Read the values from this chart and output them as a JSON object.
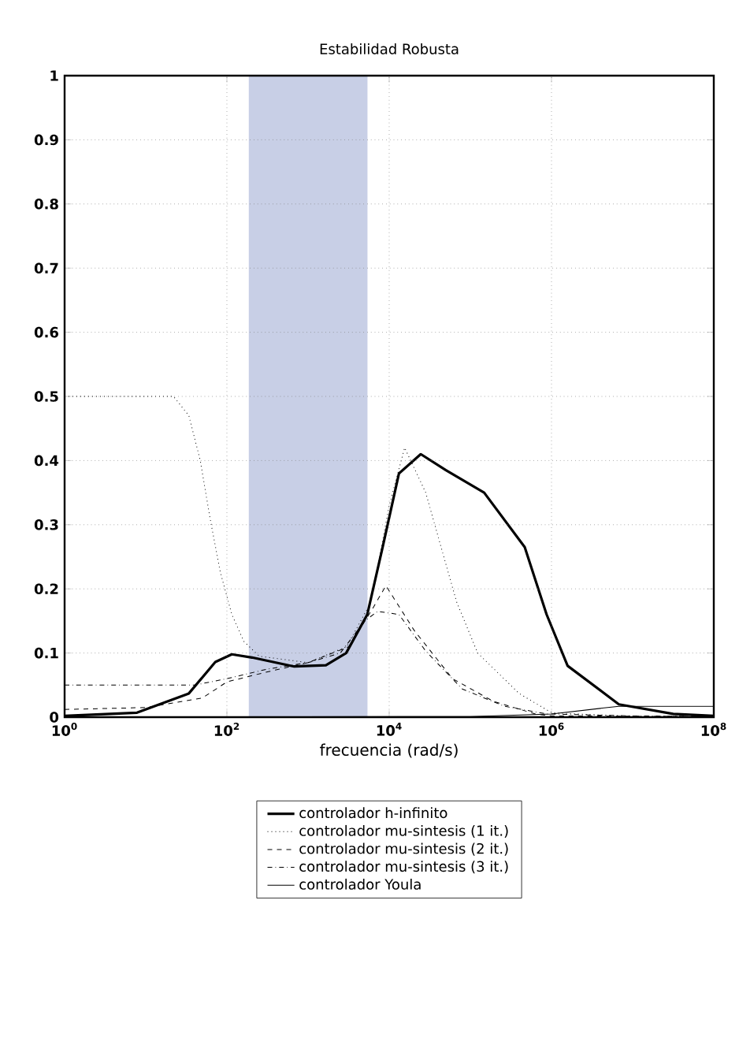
{
  "chart_data": {
    "type": "line",
    "title": "Estabilidad Robusta",
    "xlabel": "frecuencia (rad/s)",
    "log": "x",
    "xlim": [
      1,
      100000000
    ],
    "ylim": [
      0,
      1
    ],
    "xticks": [
      {
        "value": 1,
        "label": "10$^{0}$"
      },
      {
        "value": 100,
        "label": "10$^{2}$"
      },
      {
        "value": 10000,
        "label": "10$^{4}$"
      },
      {
        "value": 1000000,
        "label": "10$^{6}$"
      },
      {
        "value": 100000000,
        "label": "10$^{8}$"
      }
    ],
    "yticks": [
      0,
      0.1,
      0.2,
      0.3,
      0.4,
      0.5,
      0.6,
      0.7,
      0.8,
      0.9,
      1
    ],
    "grid": true,
    "legend": "bottom",
    "marker": "none",
    "bands": [
      {
        "axis": "x",
        "from": 186,
        "to": 5400,
        "color": "#c8cfe6"
      }
    ],
    "series": [
      {
        "name": "controlador h-infinito",
        "color": "#000000",
        "line_style": "solid",
        "x": [
          1,
          7.8,
          34,
          72,
          115,
          204,
          676,
          1660,
          2950,
          5370,
          8300,
          13200,
          24500,
          50000,
          148000,
          468000,
          871000,
          1580000,
          6760000,
          31600000,
          100000000
        ],
        "values": [
          0.002,
          0.007,
          0.037,
          0.086,
          0.098,
          0.093,
          0.079,
          0.081,
          0.1,
          0.16,
          0.265,
          0.38,
          0.41,
          0.385,
          0.35,
          0.265,
          0.16,
          0.08,
          0.02,
          0.005,
          0.002
        ]
      },
      {
        "name": "controlador mu-sintesis (1 it.)",
        "color": "#000000",
        "line_style": "dotted",
        "x": [
          1,
          22,
          34,
          47,
          62,
          83,
          115,
          162,
          251,
          1000,
          3000,
          6000,
          10000,
          15500,
          28200,
          43600,
          67600,
          123000,
          398000,
          1000000,
          10000000,
          100000000
        ],
        "values": [
          0.5,
          0.5,
          0.47,
          0.4,
          0.31,
          0.226,
          0.16,
          0.118,
          0.095,
          0.085,
          0.11,
          0.18,
          0.33,
          0.42,
          0.35,
          0.265,
          0.18,
          0.1,
          0.037,
          0.007,
          0.001,
          0.001
        ]
      },
      {
        "name": "controlador mu-sintesis (2 it.)",
        "color": "#000000",
        "line_style": "dashed",
        "x": [
          1,
          10,
          50,
          100,
          300,
          1000,
          3200,
          6300,
          9100,
          20400,
          60300,
          190000,
          631000,
          1000000,
          100000000
        ],
        "values": [
          0.012,
          0.015,
          0.03,
          0.055,
          0.07,
          0.085,
          0.11,
          0.17,
          0.205,
          0.135,
          0.06,
          0.025,
          0.005,
          0.002,
          0.001
        ]
      },
      {
        "name": "controlador mu-sintesis (3 it.)",
        "color": "#000000",
        "line_style": "dashdot",
        "x": [
          1,
          40,
          100,
          316,
          1000,
          2500,
          5000,
          7200,
          13200,
          28200,
          79400,
          263000,
          871000,
          10000000,
          100000000
        ],
        "values": [
          0.05,
          0.05,
          0.06,
          0.075,
          0.085,
          0.1,
          0.15,
          0.165,
          0.16,
          0.103,
          0.044,
          0.017,
          0.005,
          0.002,
          0.001
        ]
      },
      {
        "name": "controlador Youla",
        "color": "#000000",
        "line_style": "solid",
        "x": [
          1,
          100000,
          1000000,
          6760000,
          100000000
        ],
        "values": [
          0,
          0.001,
          0.005,
          0.017,
          0.017
        ]
      }
    ]
  }
}
